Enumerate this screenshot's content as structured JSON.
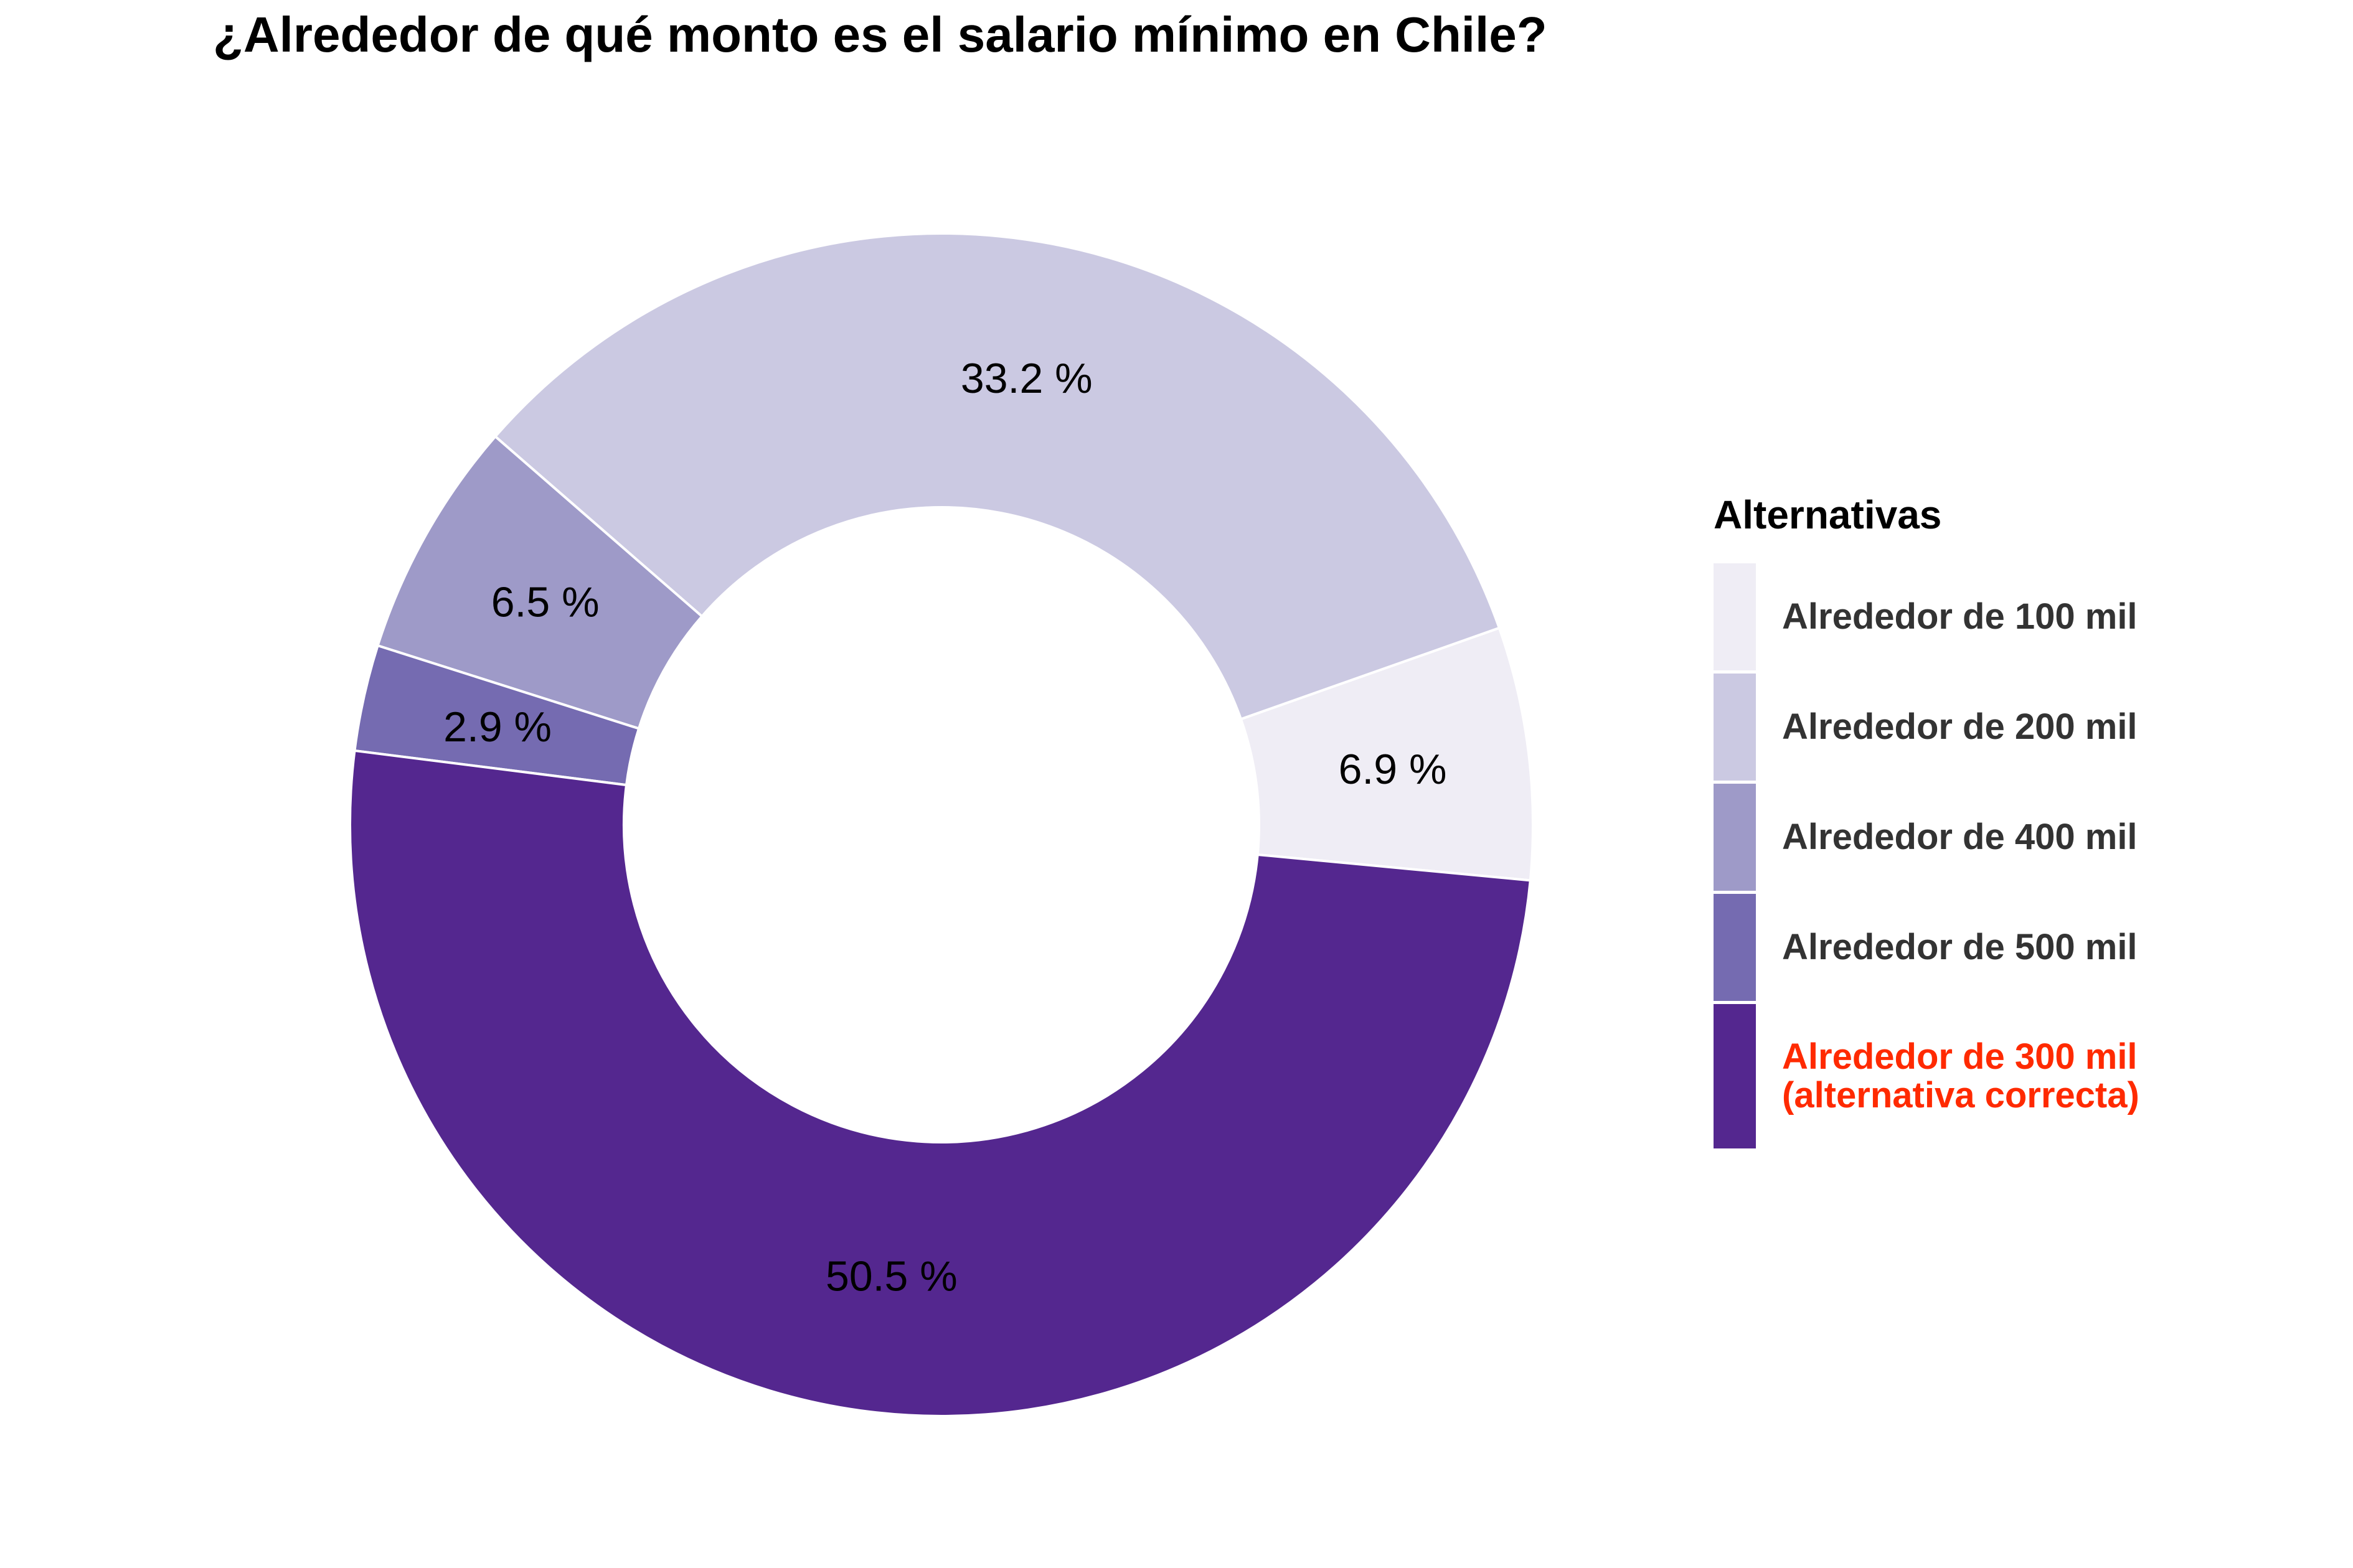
{
  "chart_data": {
    "type": "pie",
    "title": "¿Alrededor de qué monto es el salario mínimo en Chile?",
    "legend_title": "Alternativas",
    "legend_position": "right",
    "slices": [
      {
        "name": "Alrededor de 100 mil",
        "value": 6.9,
        "label": "6.9 %",
        "color": "#efedf5"
      },
      {
        "name": "Alrededor de 200 mil",
        "value": 33.2,
        "label": "33.2 %",
        "color": "#cbc9e2"
      },
      {
        "name": "Alrededor de 400 mil",
        "value": 6.5,
        "label": "6.5 %",
        "color": "#9e9ac8"
      },
      {
        "name": "Alrededor de 500 mil",
        "value": 2.9,
        "label": "2.9 %",
        "color": "#756bb1"
      },
      {
        "name": "Alrededor de 300 mil",
        "value": 50.5,
        "label": "50.5 %",
        "color": "#54278f"
      }
    ],
    "legend": [
      {
        "line1": "Alrededor de 100 mil",
        "line2": "",
        "color": "#efedf5",
        "highlight": false
      },
      {
        "line1": "Alrededor de 200 mil",
        "line2": "",
        "color": "#cbc9e2",
        "highlight": false
      },
      {
        "line1": "Alrededor de 400 mil",
        "line2": "",
        "color": "#9e9ac8",
        "highlight": false
      },
      {
        "line1": "Alrededor de 500 mil",
        "line2": "",
        "color": "#756bb1",
        "highlight": false
      },
      {
        "line1": "Alrededor de 300 mil",
        "line2": "(alternativa correcta)",
        "color": "#54278f",
        "highlight": true
      }
    ],
    "highlight_color": "#ff2a00"
  }
}
